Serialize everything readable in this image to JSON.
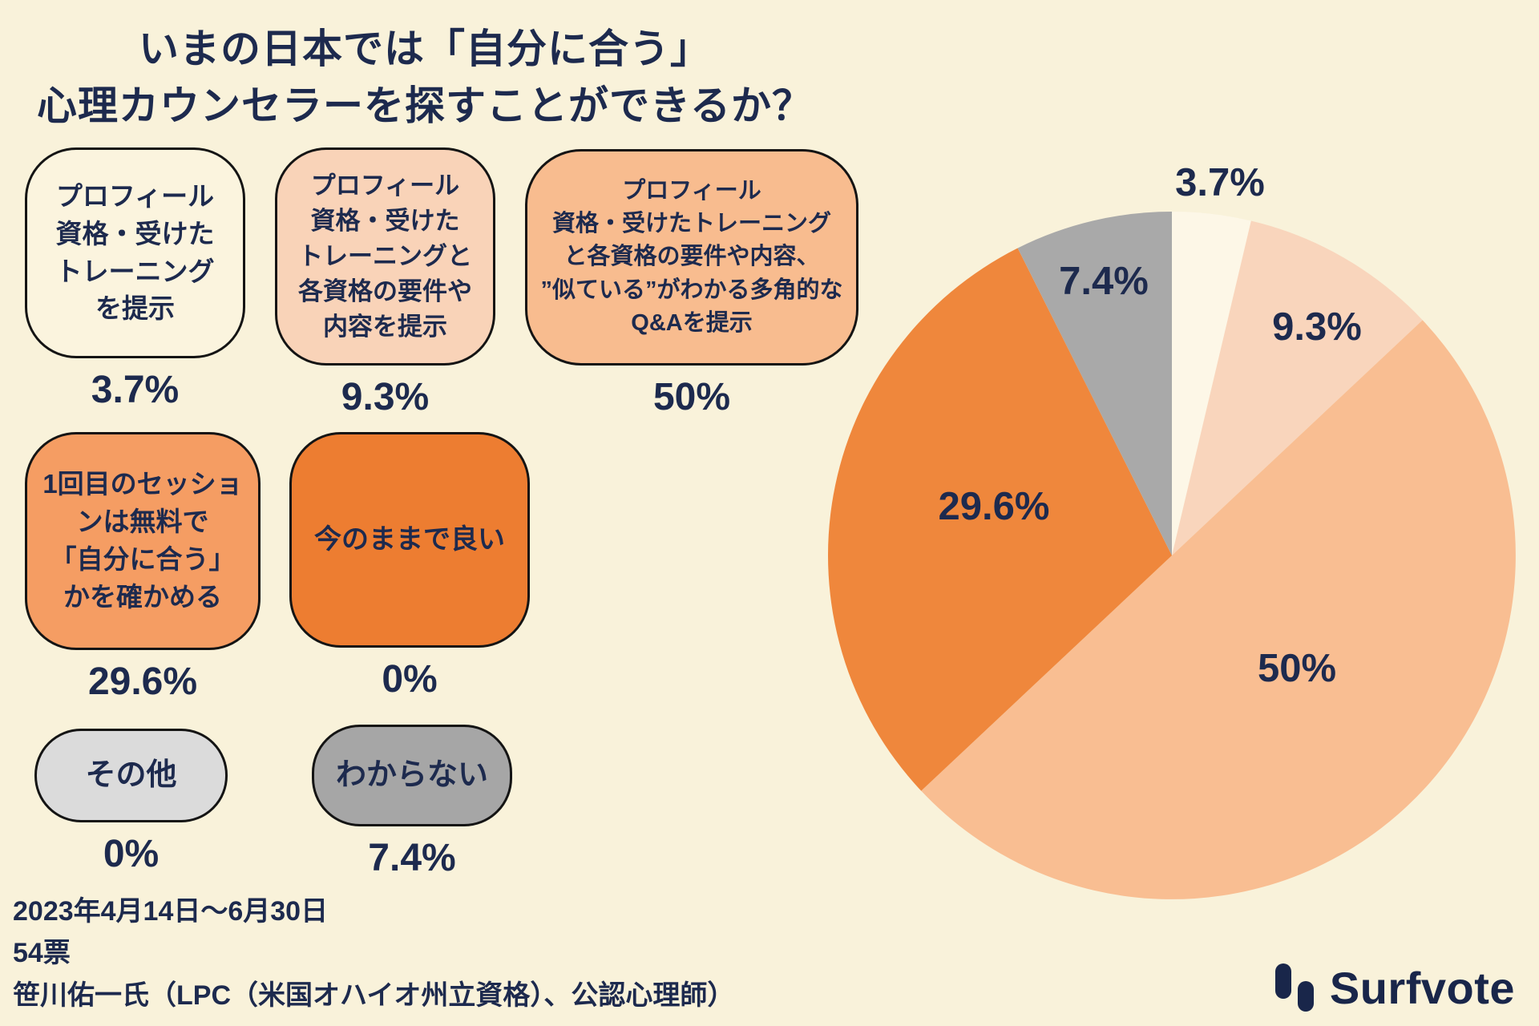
{
  "title": {
    "line1": "いまの日本では「自分に合う」",
    "line2": "心理カウンセラーを探すことができるか？"
  },
  "options": [
    {
      "label": "プロフィール\n資格・受けた\nトレーニング\nを提示",
      "percent": "3.7%",
      "color": "#FBF4DE"
    },
    {
      "label": "プロフィール\n資格・受けた\nトレーニングと\n各資格の要件や\n内容を提示",
      "percent": "9.3%",
      "color": "#F9D3B8"
    },
    {
      "label": "プロフィール\n資格・受けたトレーニング\nと各資格の要件や内容、\n”似ている”がわかる多角的な\nQ&Aを提示",
      "percent": "50%",
      "color": "#F8BC8F"
    },
    {
      "label": "1回目のセッショ\nンは無料で\n「自分に合う」\nかを確かめる",
      "percent": "29.6%",
      "color": "#F59D63"
    },
    {
      "label": "今のままで良い",
      "percent": "0%",
      "color": "#ED7D31"
    },
    {
      "label": "その他",
      "percent": "0%",
      "color": "#DBDBDB"
    },
    {
      "label": "わからない",
      "percent": "7.4%",
      "color": "#A6A6A6"
    }
  ],
  "chart_data": {
    "type": "pie",
    "title": "いまの日本では「自分に合う」心理カウンセラーを探すことができるか？",
    "start_angle_deg": -90,
    "direction": "clockwise",
    "total_votes": 54,
    "slices": [
      {
        "name": "プロフィール 資格・受けたトレーニングを提示",
        "value": 3.7,
        "label": "3.7%",
        "color": "#FDF7E7"
      },
      {
        "name": "プロフィール 資格・受けたトレーニングと各資格の要件や内容を提示",
        "value": 9.3,
        "label": "9.3%",
        "color": "#F9D5BC"
      },
      {
        "name": "プロフィール 資格・受けたトレーニングと各資格の要件や内容、”似ている”がわかる多角的なQ&Aを提示",
        "value": 50,
        "label": "50%",
        "color": "#F9BE92"
      },
      {
        "name": "1回目のセッションは無料で「自分に合う」かを確かめる",
        "value": 29.6,
        "label": "29.6%",
        "color": "#EF873C"
      },
      {
        "name": "今のままで良い",
        "value": 0,
        "label": "0%",
        "color": "#ED7D31"
      },
      {
        "name": "その他",
        "value": 0,
        "label": "0%",
        "color": "#DBDBDB"
      },
      {
        "name": "わからない",
        "value": 7.4,
        "label": "7.4%",
        "color": "#A9A9A9"
      }
    ]
  },
  "footer": {
    "period": "2023年4月14日〜6月30日",
    "votes": "54票",
    "supervisor": "笹川佑一氏（LPC（米国オハイオ州立資格）、公認心理師）"
  },
  "logo": {
    "text": "Surfvote"
  }
}
